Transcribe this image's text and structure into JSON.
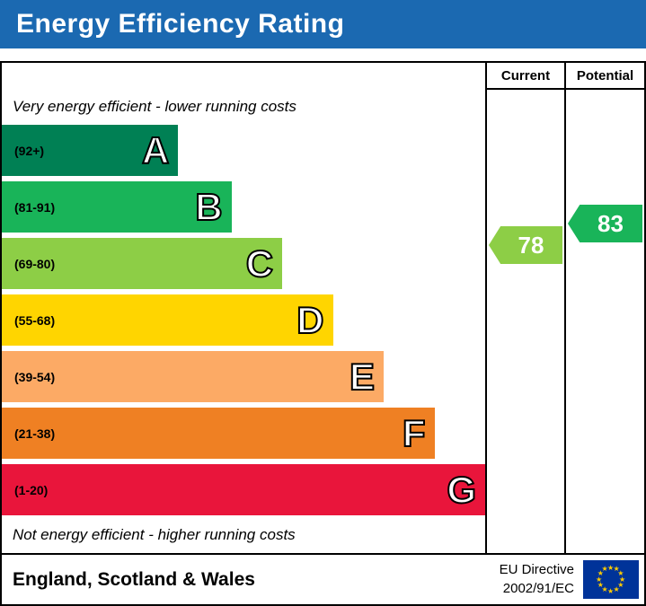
{
  "header": {
    "title": "Energy Efficiency Rating",
    "bg_color": "#1b69b1"
  },
  "table": {
    "current_label": "Current",
    "potential_label": "Potential"
  },
  "notes": {
    "top": "Very energy efficient - lower running costs",
    "bottom": "Not energy efficient - higher running costs"
  },
  "chart_data": {
    "type": "bar",
    "title": "Energy Efficiency Rating",
    "bands": [
      {
        "letter": "A",
        "range": "(92+)",
        "color": "#008054",
        "width_pct": 36.5
      },
      {
        "letter": "B",
        "range": "(81-91)",
        "color": "#19b459",
        "width_pct": 47.5
      },
      {
        "letter": "C",
        "range": "(69-80)",
        "color": "#8dce46",
        "width_pct": 58
      },
      {
        "letter": "D",
        "range": "(55-68)",
        "color": "#ffd500",
        "width_pct": 68.5
      },
      {
        "letter": "E",
        "range": "(39-54)",
        "color": "#fcaa65",
        "width_pct": 79
      },
      {
        "letter": "F",
        "range": "(21-38)",
        "color": "#ef8023",
        "width_pct": 89.5
      },
      {
        "letter": "G",
        "range": "(1-20)",
        "color": "#e9153b",
        "width_pct": 100
      }
    ],
    "current": {
      "value": 78,
      "band": "C",
      "color": "#8dce46"
    },
    "potential": {
      "value": 83,
      "band": "B",
      "color": "#19b459"
    }
  },
  "footer": {
    "region": "England, Scotland & Wales",
    "directive_line1": "EU Directive",
    "directive_line2": "2002/91/EC",
    "flag": "eu-flag",
    "flag_bg": "#003399",
    "star_color": "#ffcc00"
  }
}
